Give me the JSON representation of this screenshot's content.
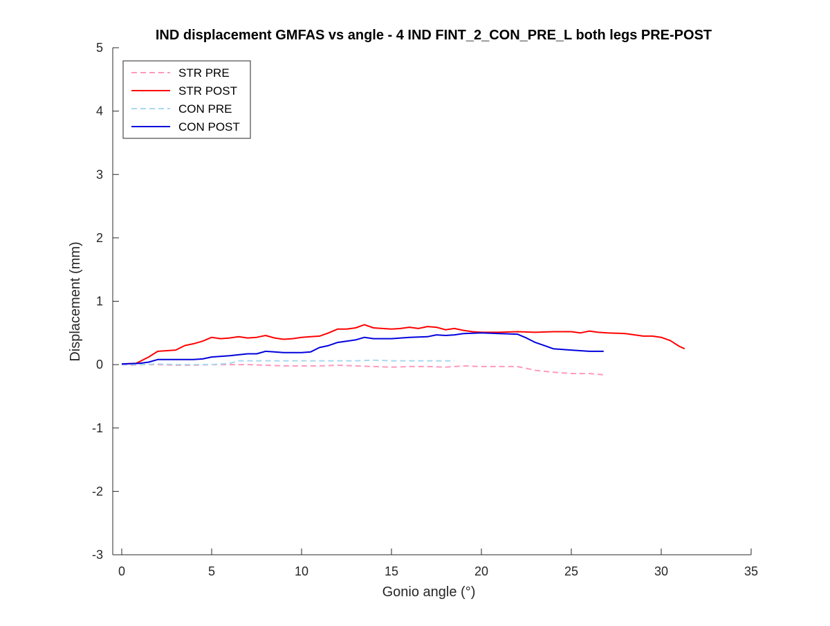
{
  "chart_data": {
    "type": "line",
    "title": "IND displacement GMFAS vs angle - 4 IND FINT_2_CON_PRE_L both legs PRE-POST",
    "xlabel": "Gonio angle (°)",
    "ylabel": "Displacement (mm)",
    "xlim": [
      -0.5,
      35
    ],
    "ylim": [
      -3,
      5
    ],
    "xticks": [
      0,
      5,
      10,
      15,
      20,
      25,
      30,
      35
    ],
    "yticks": [
      -3,
      -2,
      -1,
      0,
      1,
      2,
      3,
      4,
      5
    ],
    "grid": false,
    "legend_position": "top-left",
    "series": [
      {
        "name": "STR PRE",
        "color": "#ff99bb",
        "dash": "dashed",
        "x": [
          0,
          0.5,
          1,
          1.5,
          2,
          3,
          4,
          5,
          5.5,
          6,
          6.5,
          7,
          8,
          9,
          10,
          11,
          12,
          13,
          14,
          15,
          16,
          17,
          18,
          19,
          20,
          21,
          22,
          22.5,
          23,
          24,
          25,
          26,
          26.8
        ],
        "y": [
          0.0,
          -0.01,
          0.0,
          0.0,
          0.0,
          -0.01,
          -0.01,
          0.0,
          0.0,
          0.0,
          0.0,
          0.0,
          -0.01,
          -0.02,
          -0.02,
          -0.02,
          -0.01,
          -0.02,
          -0.03,
          -0.04,
          -0.03,
          -0.03,
          -0.04,
          -0.02,
          -0.03,
          -0.03,
          -0.03,
          -0.06,
          -0.09,
          -0.12,
          -0.14,
          -0.14,
          -0.16
        ]
      },
      {
        "name": "STR POST",
        "color": "#ff0000",
        "dash": "solid",
        "x": [
          0,
          0.8,
          1.5,
          2,
          3,
          3.5,
          4,
          4.5,
          5,
          5.5,
          6,
          6.5,
          7,
          7.5,
          8,
          8.5,
          9,
          9.5,
          10,
          10.5,
          11,
          11.5,
          12,
          12.5,
          13,
          13.5,
          14,
          14.5,
          15,
          15.5,
          16,
          16.5,
          17,
          17.5,
          18,
          18.5,
          19,
          19.5,
          20,
          21,
          22,
          23,
          24,
          25,
          25.5,
          26,
          26.5,
          27,
          28,
          29,
          29.5,
          30,
          30.5,
          31,
          31.3
        ],
        "y": [
          0.01,
          0.02,
          0.12,
          0.21,
          0.23,
          0.3,
          0.33,
          0.37,
          0.43,
          0.41,
          0.42,
          0.44,
          0.42,
          0.43,
          0.46,
          0.42,
          0.4,
          0.41,
          0.43,
          0.44,
          0.45,
          0.5,
          0.56,
          0.56,
          0.58,
          0.63,
          0.58,
          0.57,
          0.56,
          0.57,
          0.59,
          0.57,
          0.6,
          0.59,
          0.55,
          0.57,
          0.54,
          0.52,
          0.51,
          0.51,
          0.52,
          0.51,
          0.52,
          0.52,
          0.5,
          0.53,
          0.51,
          0.5,
          0.49,
          0.45,
          0.45,
          0.43,
          0.38,
          0.29,
          0.25
        ]
      },
      {
        "name": "CON PRE",
        "color": "#a6d8f0",
        "dash": "dashed",
        "x": [
          0,
          1,
          2,
          3,
          4,
          5,
          5.5,
          6,
          6.5,
          7,
          8,
          9,
          10,
          11,
          12,
          13,
          14,
          15,
          16,
          17,
          18,
          18.5
        ],
        "y": [
          0.0,
          0.0,
          0.01,
          0.0,
          0.0,
          0.0,
          0.01,
          0.02,
          0.06,
          0.06,
          0.06,
          0.06,
          0.06,
          0.06,
          0.06,
          0.06,
          0.07,
          0.06,
          0.06,
          0.06,
          0.06,
          0.06
        ]
      },
      {
        "name": "CON POST",
        "color": "#0000dd",
        "dash": "solid",
        "x": [
          0,
          1,
          1.5,
          2,
          3,
          4,
          4.5,
          5,
          6,
          7,
          7.5,
          8,
          8.5,
          9,
          10,
          10.5,
          11,
          11.5,
          12,
          12.5,
          13,
          13.5,
          14,
          15,
          16,
          17,
          17.5,
          18,
          18.5,
          19,
          20,
          21,
          22,
          22.5,
          23,
          23.5,
          24,
          25,
          25.5,
          26,
          26.8
        ],
        "y": [
          0.01,
          0.02,
          0.04,
          0.08,
          0.08,
          0.08,
          0.09,
          0.12,
          0.14,
          0.17,
          0.17,
          0.21,
          0.2,
          0.19,
          0.19,
          0.2,
          0.27,
          0.3,
          0.35,
          0.37,
          0.39,
          0.43,
          0.41,
          0.41,
          0.43,
          0.44,
          0.47,
          0.46,
          0.47,
          0.49,
          0.5,
          0.49,
          0.48,
          0.42,
          0.35,
          0.3,
          0.25,
          0.23,
          0.22,
          0.21,
          0.21
        ]
      }
    ]
  }
}
